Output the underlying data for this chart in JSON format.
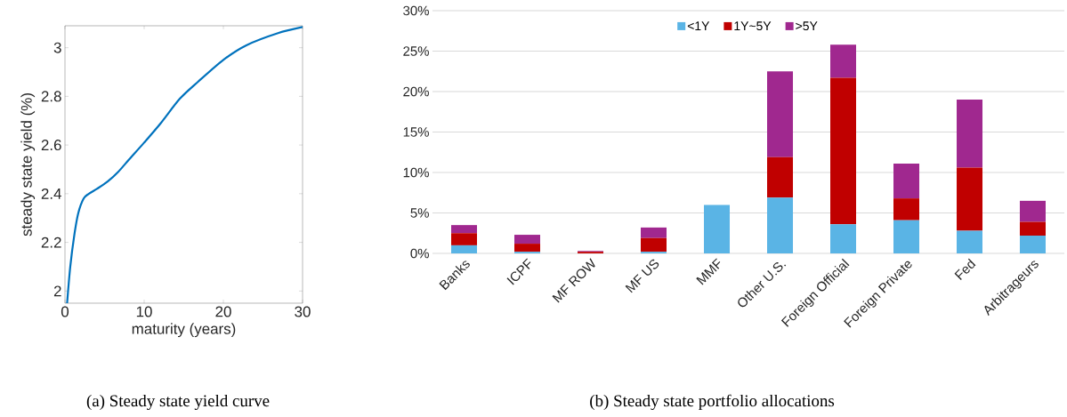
{
  "chart_data": [
    {
      "type": "line",
      "title": "(a) Steady state yield curve",
      "xlabel": "maturity (years)",
      "ylabel": "steady state yield (%)",
      "xlim": [
        0,
        30
      ],
      "ylim": [
        1.95,
        3.09
      ],
      "xticks": [
        0,
        10,
        20,
        30
      ],
      "yticks": [
        2,
        2.2,
        2.4,
        2.6,
        2.8,
        3
      ],
      "series": [
        {
          "color": "#0072bd",
          "x": [
            0.27,
            0.67,
            1.18,
            1.68,
            2.36,
            3.03,
            4.04,
            5.39,
            6.73,
            8.08,
            10,
            12.1,
            14.5,
            16.8,
            20,
            22.9,
            26.9,
            30
          ],
          "values": [
            1.95,
            2.1,
            2.23,
            2.32,
            2.38,
            2.4,
            2.42,
            2.45,
            2.49,
            2.54,
            2.61,
            2.69,
            2.79,
            2.86,
            2.95,
            3.01,
            3.06,
            3.085
          ]
        }
      ]
    },
    {
      "type": "bar",
      "stacked": true,
      "title": "(b) Steady state portfolio allocations",
      "categories": [
        "Banks",
        "ICPF",
        "MF ROW",
        "MF US",
        "MMF",
        "Other U.S.",
        "Foreign Official",
        "Foreign Private",
        "Fed",
        "Arbitrageurs"
      ],
      "ylim": [
        0,
        30
      ],
      "yticks": [
        {
          "value": 0,
          "label": "0%"
        },
        {
          "value": 5,
          "label": "5%"
        },
        {
          "value": 10,
          "label": "10%"
        },
        {
          "value": 15,
          "label": "15%"
        },
        {
          "value": 20,
          "label": "20%"
        },
        {
          "value": 25,
          "label": "25%"
        },
        {
          "value": 30,
          "label": "30%"
        }
      ],
      "grid": "y",
      "legend": "top",
      "series": [
        {
          "name": "<1Y",
          "color": "#5ab4e5",
          "values": [
            1.0,
            0.2,
            0.0,
            0.2,
            6.0,
            6.9,
            3.6,
            4.1,
            2.8,
            2.2
          ]
        },
        {
          "name": "1Y~5Y",
          "color": "#c00000",
          "values": [
            1.5,
            1.0,
            0.2,
            1.7,
            0.0,
            5.0,
            18.1,
            2.7,
            7.8,
            1.7
          ]
        },
        {
          "name": ">5Y",
          "color": "#a0288f",
          "values": [
            1.0,
            1.1,
            0.1,
            1.3,
            0.0,
            10.6,
            4.1,
            4.3,
            8.4,
            2.6
          ]
        }
      ]
    }
  ]
}
